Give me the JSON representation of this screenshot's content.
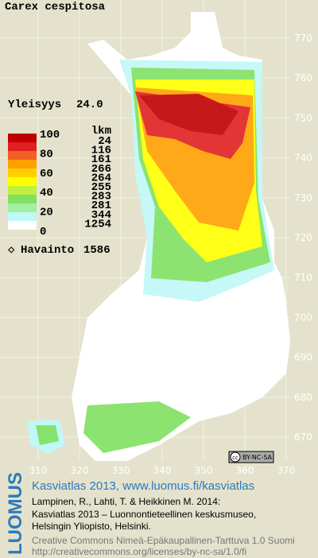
{
  "title": "Carex cespitosa",
  "frequency": {
    "label": "Yleisyys",
    "value": "24.0"
  },
  "legend": {
    "count_header": "lkm",
    "levels": [
      100,
      80,
      60,
      40,
      20,
      0
    ],
    "counts": [
      24,
      116,
      161,
      266,
      264,
      255,
      283,
      281,
      344,
      1254
    ]
  },
  "observations": {
    "label": "Havainto",
    "value": 1586
  },
  "north_ticks": [
    770,
    760,
    750,
    740,
    730,
    720,
    710,
    700,
    690,
    680,
    670
  ],
  "east_ticks": [
    310,
    320,
    330,
    340,
    350,
    360,
    370
  ],
  "license": {
    "icon": "cc",
    "text": "BY-NC-SA"
  },
  "footer": {
    "brand": "LUOMUS",
    "headline": "Kasviatlas 2013, www.luomus.fi/kasviatlas",
    "citation": [
      "Lampinen, R., Lahti, T. & Heikkinen M. 2014:",
      "Kasviatlas 2013 – Luonnontieteellinen keskusmuseo,",
      "Helsingin Yliopisto, Helsinki."
    ],
    "license_lines": [
      "Creative Commons Nimeä-Epäkaupallinen-Tarttuva 1.0 Suomi",
      "http://creativecommons.org/licenses/by-nc-sa/1.0/fi"
    ]
  }
}
